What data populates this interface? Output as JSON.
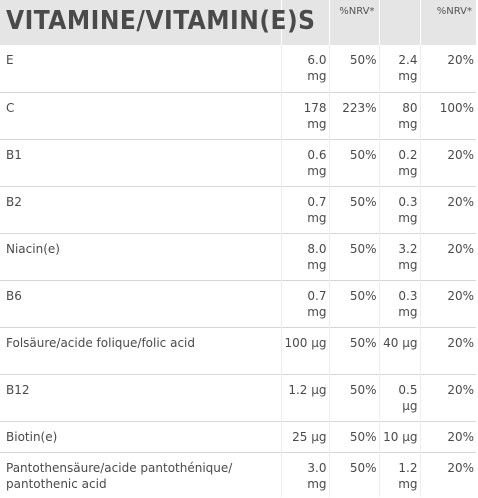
{
  "header": {
    "title": "VITAMINE/VITAMIN(E)S",
    "col1": "",
    "col2": "%NRV*",
    "col3": "",
    "col4": "%NRV*"
  },
  "rows": [
    {
      "name": "E",
      "a": "6.0 mg",
      "b": "50%",
      "c": "2.4 mg",
      "d": "20%"
    },
    {
      "name": "C",
      "a": "178 mg",
      "b": "223%",
      "c": "80 mg",
      "d": "100%"
    },
    {
      "name": "B1",
      "a": "0.6 mg",
      "b": "50%",
      "c": "0.2 mg",
      "d": "20%"
    },
    {
      "name": "B2",
      "a": "0.7 mg",
      "b": "50%",
      "c": "0.3 mg",
      "d": "20%"
    },
    {
      "name": "Niacin(e)",
      "a": "8.0 mg",
      "b": "50%",
      "c": "3.2 mg",
      "d": "20%"
    },
    {
      "name": "B6",
      "a": "0.7 mg",
      "b": "50%",
      "c": "0.3 mg",
      "d": "20%"
    },
    {
      "name": "Folsäure/acide folique/folic acid",
      "a": "100 µg",
      "b": "50%",
      "c": "40 µg",
      "d": "20%"
    },
    {
      "name": "B12",
      "a": "1.2 µg",
      "b": "50%",
      "c": "0.5 µg",
      "d": "20%"
    },
    {
      "name": "Biotin(e)",
      "a": "25 µg",
      "b": "50%",
      "c": "10 µg",
      "d": "20%"
    },
    {
      "name": "Pantothensäure/acide pantothénique/ pantothenic acid",
      "a": "3.0 mg",
      "b": "50%",
      "c": "1.2 mg",
      "d": "20%"
    }
  ]
}
